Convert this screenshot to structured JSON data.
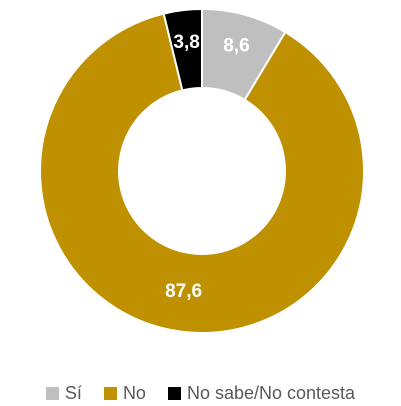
{
  "chart_data": {
    "type": "pie",
    "variant": "donut",
    "title": "",
    "slices": [
      {
        "label": "Sí",
        "value": 8.6,
        "value_label": "8,6",
        "color": "#BFBFBF"
      },
      {
        "label": "No",
        "value": 87.6,
        "value_label": "87,6",
        "color": "#BF9000"
      },
      {
        "label": "No sabe/No contesta",
        "value": 3.8,
        "value_label": "3,8",
        "color": "#000000"
      }
    ],
    "legend_position": "bottom"
  }
}
